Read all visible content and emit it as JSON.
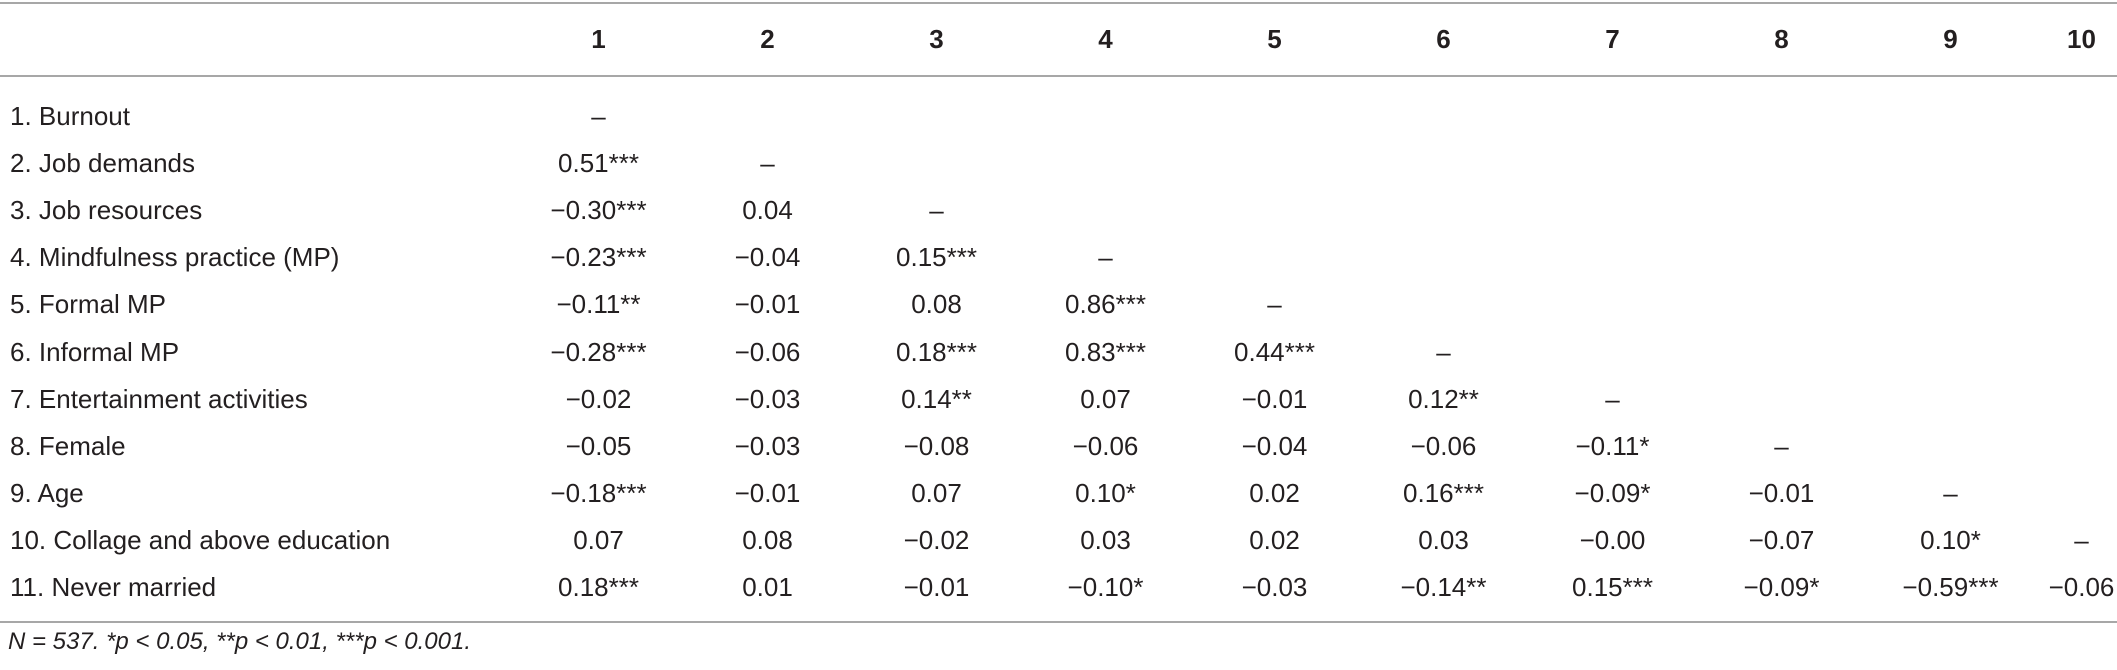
{
  "table": {
    "columns": [
      "1",
      "2",
      "3",
      "4",
      "5",
      "6",
      "7",
      "8",
      "9",
      "10"
    ],
    "rows": [
      {
        "label": "1. Burnout",
        "cells": [
          "–",
          "",
          "",
          "",
          "",
          "",
          "",
          "",
          "",
          ""
        ]
      },
      {
        "label": "2. Job demands",
        "cells": [
          "0.51***",
          "–",
          "",
          "",
          "",
          "",
          "",
          "",
          "",
          ""
        ]
      },
      {
        "label": "3. Job resources",
        "cells": [
          "−0.30***",
          "0.04",
          "–",
          "",
          "",
          "",
          "",
          "",
          "",
          ""
        ]
      },
      {
        "label": "4. Mindfulness practice (MP)",
        "cells": [
          "−0.23***",
          "−0.04",
          "0.15***",
          "–",
          "",
          "",
          "",
          "",
          "",
          ""
        ]
      },
      {
        "label": "5. Formal MP",
        "cells": [
          "−0.11**",
          "−0.01",
          "0.08",
          "0.86***",
          "–",
          "",
          "",
          "",
          "",
          ""
        ]
      },
      {
        "label": "6. Informal MP",
        "cells": [
          "−0.28***",
          "−0.06",
          "0.18***",
          "0.83***",
          "0.44***",
          "–",
          "",
          "",
          "",
          ""
        ]
      },
      {
        "label": "7. Entertainment activities",
        "cells": [
          "−0.02",
          "−0.03",
          "0.14**",
          "0.07",
          "−0.01",
          "0.12**",
          "–",
          "",
          "",
          ""
        ]
      },
      {
        "label": "8. Female",
        "cells": [
          "−0.05",
          "−0.03",
          "−0.08",
          "−0.06",
          "−0.04",
          "−0.06",
          "−0.11*",
          "–",
          "",
          ""
        ]
      },
      {
        "label": "9. Age",
        "cells": [
          "−0.18***",
          "−0.01",
          "0.07",
          "0.10*",
          "0.02",
          "0.16***",
          "−0.09*",
          "−0.01",
          "–",
          ""
        ]
      },
      {
        "label": "10. Collage and above education",
        "cells": [
          "0.07",
          "0.08",
          "−0.02",
          "0.03",
          "0.02",
          "0.03",
          "−0.00",
          "−0.07",
          "0.10*",
          "–"
        ]
      },
      {
        "label": "11. Never married",
        "cells": [
          "0.18***",
          "0.01",
          "−0.01",
          "−0.10*",
          "−0.03",
          "−0.14**",
          "0.15***",
          "−0.09*",
          "−0.59***",
          "−0.06"
        ]
      }
    ]
  },
  "note": "N = 537. *p < 0.05, **p < 0.01, ***p < 0.001."
}
